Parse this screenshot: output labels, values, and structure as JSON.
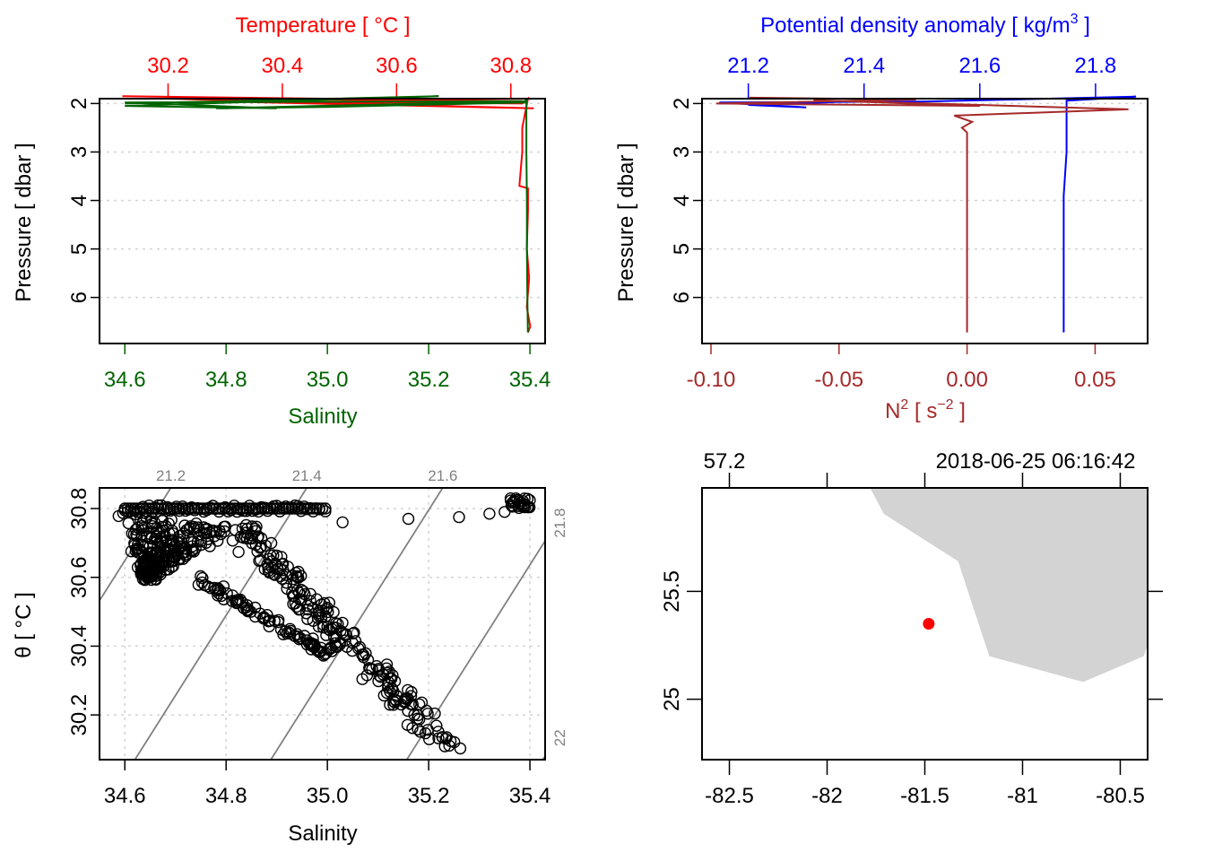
{
  "chart_data": [
    {
      "id": "ts-profile",
      "type": "line",
      "title": "",
      "y_axis": {
        "label": "Pressure [ dbar ]",
        "ticks": [
          2,
          3,
          4,
          5,
          6
        ],
        "range": [
          6.95,
          1.9
        ],
        "reversed": true,
        "grid": true
      },
      "x_bottom": {
        "label": "Salinity",
        "color": "#006400",
        "ticks": [
          "34.6",
          "34.8",
          "35.0",
          "35.2",
          "35.4"
        ],
        "range": [
          34.55,
          35.43
        ]
      },
      "x_top": {
        "label": "Temperature [ °C ]",
        "color": "#ff0000",
        "ticks": [
          "30.2",
          "30.4",
          "30.6",
          "30.8"
        ],
        "range": [
          30.08,
          30.86
        ]
      },
      "series": [
        {
          "name": "Temperature",
          "color": "#ff0000",
          "axis": "top",
          "values": [
            [
              30.12,
              1.85
            ],
            [
              30.82,
              1.95
            ],
            [
              30.2,
              1.9
            ],
            [
              30.84,
              2.1
            ],
            [
              30.3,
              1.96
            ],
            [
              30.82,
              2.0
            ],
            [
              30.83,
              1.9
            ],
            [
              30.82,
              2.5
            ],
            [
              30.82,
              3.0
            ],
            [
              30.815,
              3.7
            ],
            [
              30.83,
              3.75
            ],
            [
              30.83,
              4.2
            ],
            [
              30.828,
              5.0
            ],
            [
              30.832,
              5.6
            ],
            [
              30.828,
              6.2
            ],
            [
              30.834,
              6.6
            ],
            [
              30.83,
              6.72
            ]
          ]
        },
        {
          "name": "Salinity",
          "color": "#006400",
          "axis": "bottom",
          "values": [
            [
              34.6,
              2.0
            ],
            [
              35.22,
              1.85
            ],
            [
              34.6,
              2.05
            ],
            [
              34.9,
              2.1
            ],
            [
              34.6,
              1.98
            ],
            [
              35.39,
              1.95
            ],
            [
              34.78,
              2.1
            ],
            [
              35.0,
              2.07
            ],
            [
              35.39,
              1.98
            ],
            [
              35.393,
              1.9
            ],
            [
              35.393,
              3.0
            ],
            [
              35.394,
              4.0
            ],
            [
              35.394,
              5.0
            ],
            [
              35.395,
              6.0
            ],
            [
              35.396,
              6.72
            ]
          ]
        }
      ]
    },
    {
      "id": "density-n2-profile",
      "type": "line",
      "y_axis": {
        "label": "Pressure [ dbar ]",
        "ticks": [
          2,
          3,
          4,
          5,
          6
        ],
        "range": [
          6.95,
          1.9
        ],
        "reversed": true,
        "grid": true
      },
      "x_top": {
        "label": "Potential density anomaly [ kg/m³ ]",
        "color": "#0000ff",
        "ticks": [
          "21.2",
          "21.4",
          "21.6",
          "21.8"
        ],
        "range": [
          21.12,
          21.89
        ]
      },
      "x_bottom": {
        "label": "N² [ s⁻² ]",
        "color": "#a52a2a",
        "ticks": [
          "-0.10",
          "-0.05",
          "0.00",
          "0.05"
        ],
        "range": [
          -0.1035,
          0.0705
        ]
      },
      "series": [
        {
          "name": "Potential density anomaly",
          "color": "#0000ff",
          "axis": "top",
          "values": [
            [
              21.15,
              2.0
            ],
            [
              21.4,
              1.95
            ],
            [
              21.2,
              2.03
            ],
            [
              21.3,
              2.08
            ],
            [
              21.15,
              1.98
            ],
            [
              21.5,
              1.96
            ],
            [
              21.87,
              1.86
            ],
            [
              21.75,
              1.94
            ],
            [
              21.75,
              3.0
            ],
            [
              21.745,
              3.9
            ],
            [
              21.745,
              5.0
            ],
            [
              21.745,
              6.0
            ],
            [
              21.745,
              6.72
            ]
          ]
        },
        {
          "name": "N2",
          "color": "#a52a2a",
          "axis": "bottom",
          "values": [
            [
              -0.085,
              1.88
            ],
            [
              -0.02,
              1.92
            ],
            [
              -0.098,
              2.0
            ],
            [
              0.005,
              2.05
            ],
            [
              -0.06,
              1.93
            ],
            [
              0.063,
              2.12
            ],
            [
              -0.005,
              2.25
            ],
            [
              0.002,
              2.38
            ],
            [
              -0.002,
              2.5
            ],
            [
              0.0,
              2.6
            ],
            [
              0.0,
              3.7
            ],
            [
              0.0,
              4.0
            ],
            [
              0.0,
              5.0
            ],
            [
              0.0,
              6.0
            ],
            [
              0.0,
              6.72
            ]
          ]
        }
      ]
    },
    {
      "id": "ts-diagram",
      "type": "scatter",
      "x_axis": {
        "label": "Salinity",
        "ticks": [
          "34.6",
          "34.8",
          "35.0",
          "35.2",
          "35.4"
        ],
        "range": [
          34.55,
          35.43
        ]
      },
      "y_axis": {
        "label": "θ [ °C ]",
        "ticks": [
          "30.2",
          "30.4",
          "30.6",
          "30.8"
        ],
        "range": [
          30.07,
          30.86
        ]
      },
      "isopycnals": [
        {
          "label": "21.2",
          "value": 21.2,
          "label_side": "top"
        },
        {
          "label": "21.4",
          "value": 21.4,
          "label_side": "top"
        },
        {
          "label": "21.6",
          "value": 21.6,
          "label_side": "top"
        },
        {
          "label": "21.8",
          "value": 21.8,
          "label_side": "right"
        },
        {
          "label": "22",
          "value": 22.0,
          "label_side": "right"
        }
      ],
      "grid": true,
      "clusters": [
        {
          "desc": "dense surface band",
          "s_range": [
            34.6,
            35.0
          ],
          "t": 30.8
        },
        {
          "desc": "upper-left triangle",
          "from": [
            34.58,
            30.78
          ],
          "to": [
            34.72,
            30.6
          ]
        },
        {
          "desc": "diagonal branch A",
          "from": [
            34.82,
            30.75
          ],
          "to": [
            35.24,
            30.1
          ]
        },
        {
          "desc": "diagonal branch B",
          "from": [
            34.75,
            30.58
          ],
          "to": [
            35.0,
            30.37
          ]
        },
        {
          "desc": "sparse surface points",
          "points": [
            [
              35.03,
              30.76
            ],
            [
              35.16,
              30.77
            ],
            [
              35.26,
              30.775
            ],
            [
              35.32,
              30.785
            ],
            [
              35.35,
              30.79
            ]
          ]
        },
        {
          "desc": "high-salinity cluster",
          "from": [
            35.36,
            30.8
          ],
          "to": [
            35.4,
            30.83
          ]
        }
      ]
    },
    {
      "id": "location-map",
      "type": "map",
      "x_axis": {
        "ticks": [
          "-82.5",
          "-82",
          "-81.5",
          "-81",
          "-80.5"
        ],
        "range": [
          -82.64,
          -80.36
        ]
      },
      "y_axis": {
        "ticks": [
          "25",
          "25.5"
        ],
        "range": [
          24.72,
          25.98
        ]
      },
      "top_labels": {
        "left": "57.2",
        "right": "2018-06-25 06:16:42"
      },
      "station": {
        "lon": -81.48,
        "lat": 25.35,
        "color": "#ff0000"
      },
      "land_color": "#d3d3d3",
      "coastline": [
        [
          -81.78,
          25.98
        ],
        [
          -81.71,
          25.86
        ],
        [
          -81.33,
          25.64
        ],
        [
          -81.17,
          25.2
        ],
        [
          -80.69,
          25.08
        ],
        [
          -80.38,
          25.2
        ],
        [
          -80.36,
          25.25
        ],
        [
          -80.36,
          25.98
        ]
      ]
    }
  ]
}
